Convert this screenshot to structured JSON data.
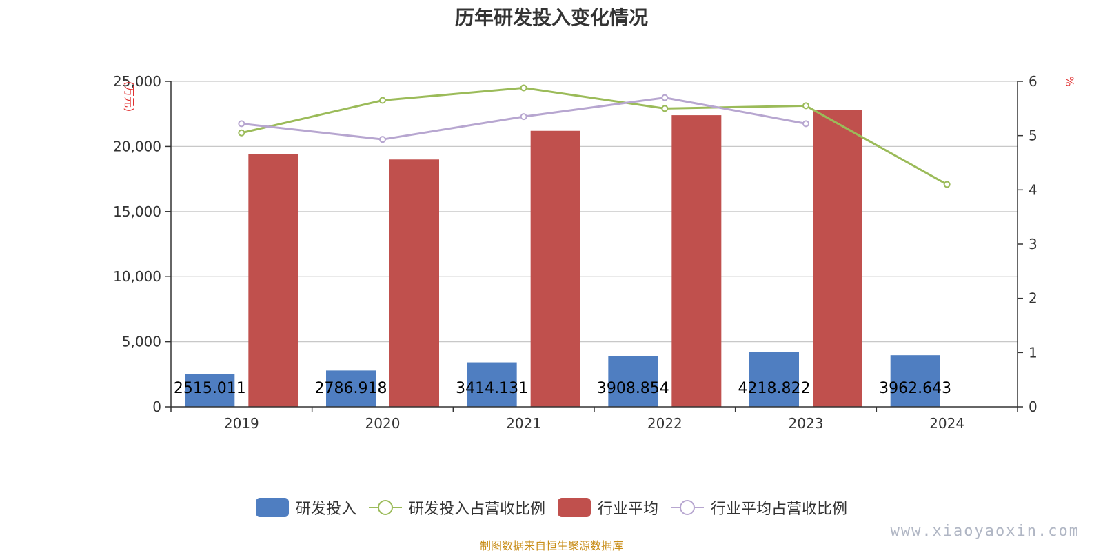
{
  "chart_data": {
    "type": "bar",
    "title": "历年研发投入变化情况",
    "categories": [
      "2019",
      "2020",
      "2021",
      "2022",
      "2023",
      "2024"
    ],
    "y_left": {
      "unit": "(万元)",
      "ylim": [
        0,
        25000
      ],
      "ticks": [
        "0",
        "5,000",
        "10,000",
        "15,000",
        "20,000",
        "25,000"
      ],
      "tick_values": [
        0,
        5000,
        10000,
        15000,
        20000,
        25000
      ]
    },
    "y_right": {
      "unit": "%",
      "ylim": [
        0,
        6
      ],
      "ticks": [
        "0",
        "1",
        "2",
        "3",
        "4",
        "5",
        "6"
      ],
      "tick_values": [
        0,
        1,
        2,
        3,
        4,
        5,
        6
      ]
    },
    "series": [
      {
        "name": "研发投入",
        "kind": "bar",
        "axis": "left",
        "color": "#4f7ec1",
        "values": [
          2515.011,
          2786.918,
          3414.131,
          3908.854,
          4218.822,
          3962.643
        ],
        "labels": [
          "2515.011",
          "2786.918",
          "3414.131",
          "3908.854",
          "4218.822",
          "3962.643"
        ]
      },
      {
        "name": "行业平均",
        "kind": "bar",
        "axis": "left",
        "color": "#c0504d",
        "values": [
          19400,
          19000,
          21200,
          22400,
          22800,
          null
        ]
      },
      {
        "name": "研发投入占营收比例",
        "kind": "line",
        "axis": "right",
        "color": "#9bbb59",
        "values": [
          5.05,
          5.65,
          5.88,
          5.5,
          5.55,
          4.1
        ]
      },
      {
        "name": "行业平均占营收比例",
        "kind": "line",
        "axis": "right",
        "color": "#b7a6d0",
        "values": [
          5.22,
          4.93,
          5.35,
          5.7,
          5.22,
          null
        ]
      }
    ],
    "grid": true,
    "legend": "bottom"
  },
  "source": "制图数据来自恒生聚源数据库",
  "watermark": "www.xiaoyaoxin.com"
}
